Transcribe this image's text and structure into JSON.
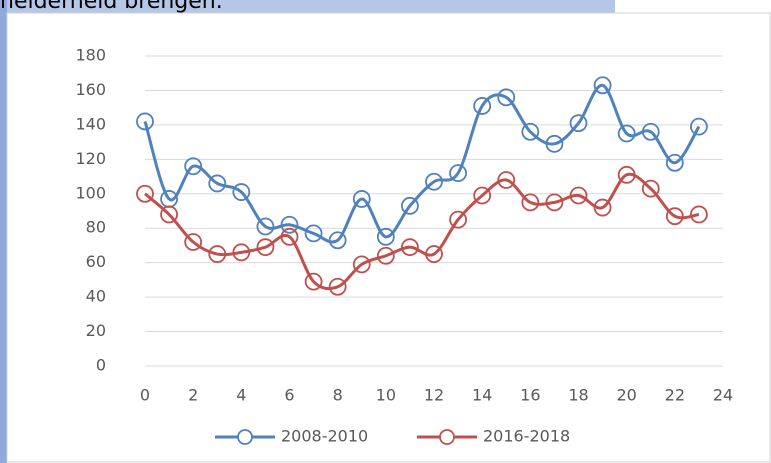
{
  "caption": "helderheid brengen.",
  "chart_data": {
    "type": "line",
    "x": [
      0,
      1,
      2,
      3,
      4,
      5,
      6,
      7,
      8,
      9,
      10,
      11,
      12,
      13,
      14,
      15,
      16,
      17,
      18,
      19,
      20,
      21,
      22,
      23
    ],
    "series": [
      {
        "name": "2008-2010",
        "color": "#4f81bd",
        "values": [
          142,
          97,
          116,
          106,
          101,
          81,
          82,
          77,
          73,
          97,
          75,
          93,
          107,
          112,
          151,
          156,
          136,
          129,
          141,
          163,
          135,
          136,
          118,
          139
        ]
      },
      {
        "name": "2016-2018",
        "color": "#c0504d",
        "values": [
          100,
          88,
          72,
          65,
          66,
          69,
          75,
          49,
          46,
          59,
          64,
          69,
          65,
          85,
          99,
          108,
          95,
          95,
          99,
          92,
          111,
          103,
          87,
          88
        ]
      }
    ],
    "xlim": [
      0,
      24
    ],
    "xticks": [
      0,
      2,
      4,
      6,
      8,
      10,
      12,
      14,
      16,
      18,
      20,
      22,
      24
    ],
    "ylim": [
      0,
      180
    ],
    "yticks": [
      0,
      20,
      40,
      60,
      80,
      100,
      120,
      140,
      160,
      180
    ],
    "grid": true,
    "smooth": true,
    "legend": "bottom"
  }
}
